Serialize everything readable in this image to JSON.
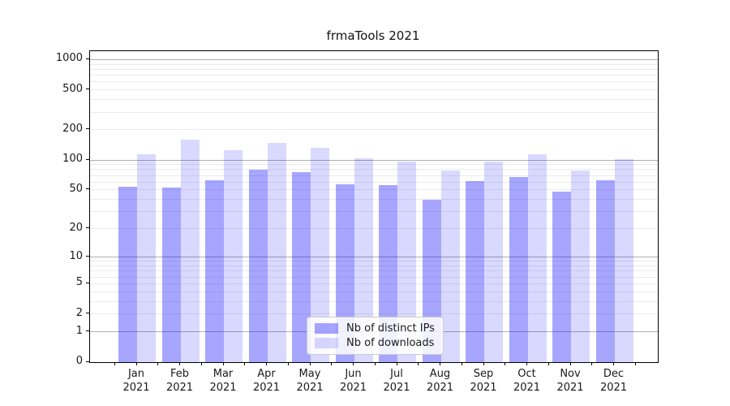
{
  "chart_data": {
    "type": "bar",
    "title": "frmaTools 2021",
    "categories": [
      "Jan",
      "Feb",
      "Mar",
      "Apr",
      "May",
      "Jun",
      "Jul",
      "Aug",
      "Sep",
      "Oct",
      "Nov",
      "Dec"
    ],
    "year_label": "2021",
    "series": [
      {
        "name": "Nb of distinct IPs",
        "color": "rgba(0,0,255,0.35)",
        "values": [
          54,
          53,
          63,
          80,
          76,
          57,
          56,
          40,
          62,
          67,
          48,
          63
        ]
      },
      {
        "name": "Nb of downloads",
        "color": "rgba(0,0,255,0.15)",
        "values": [
          115,
          160,
          125,
          148,
          133,
          105,
          97,
          79,
          97,
          114,
          78,
          102
        ]
      }
    ],
    "y_scale": "log1p",
    "ylim": [
      0,
      1200
    ],
    "y_ticks": [
      0,
      1,
      2,
      5,
      10,
      20,
      50,
      100,
      200,
      500,
      1000
    ],
    "major_gridlines": [
      1,
      10,
      100,
      1000
    ],
    "minor_gridline_decades": [
      1,
      10,
      100
    ],
    "grid": true,
    "legend_position": "lower-center-inside",
    "axis_color": "#000000",
    "major_grid_color": "#b0b0b0",
    "minor_grid_color": "#ebebeb"
  }
}
